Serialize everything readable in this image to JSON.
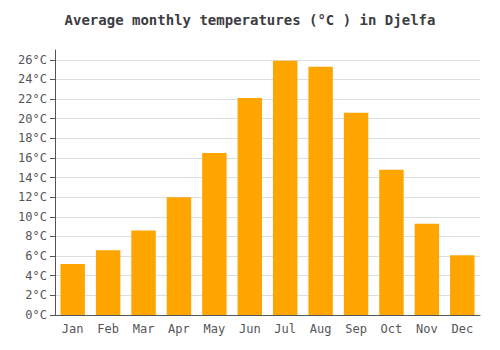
{
  "chart_data": {
    "type": "bar",
    "title": "Average monthly temperatures (°C ) in Djelfa",
    "categories": [
      "Jan",
      "Feb",
      "Mar",
      "Apr",
      "May",
      "Jun",
      "Jul",
      "Aug",
      "Sep",
      "Oct",
      "Nov",
      "Dec"
    ],
    "values": [
      5.2,
      6.6,
      8.6,
      12.0,
      16.5,
      22.1,
      25.9,
      25.3,
      20.6,
      14.8,
      9.3,
      6.1
    ],
    "color": "#FFA500",
    "ylim": [
      0,
      27
    ],
    "yticks": [
      {
        "value": 0,
        "label": "0°C"
      },
      {
        "value": 2,
        "label": "2°C"
      },
      {
        "value": 4,
        "label": "4°C"
      },
      {
        "value": 6,
        "label": "6°C"
      },
      {
        "value": 8,
        "label": "8°C"
      },
      {
        "value": 10,
        "label": "10°C"
      },
      {
        "value": 12,
        "label": "12°C"
      },
      {
        "value": 14,
        "label": "14°C"
      },
      {
        "value": 16,
        "label": "16°C"
      },
      {
        "value": 18,
        "label": "18°C"
      },
      {
        "value": 20,
        "label": "20°C"
      },
      {
        "value": 22,
        "label": "22°C"
      },
      {
        "value": 24,
        "label": "24°C"
      },
      {
        "value": 26,
        "label": "26°C"
      }
    ],
    "grid": true
  }
}
